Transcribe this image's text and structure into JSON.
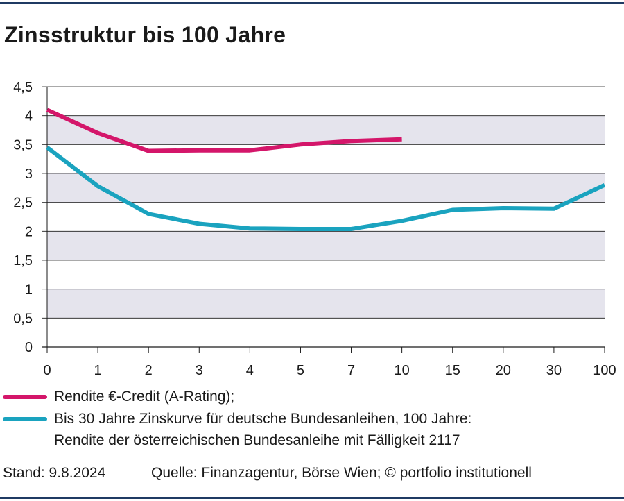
{
  "title": "Zinsstruktur bis 100 Jahre",
  "legend": [
    {
      "label": "Rendite €-Credit (A-Rating);",
      "color": "#d4166a"
    },
    {
      "label": "Bis 30 Jahre Zinskurve für deutsche Bundesanleihen, 100 Jahre:",
      "label_line2": "Rendite der österreichischen Bundesanleihe mit Fälligkeit 2117",
      "color": "#1aa3bf"
    }
  ],
  "footer": {
    "stand": "Stand: 9.8.2024",
    "source": "Quelle: Finanzagentur, Börse Wien; © portfolio institutionell"
  },
  "colors": {
    "band": "#e5e4ed",
    "grid": "#1a1a1a",
    "rule": "#1f3a63"
  },
  "chart_data": {
    "type": "line",
    "title": "Zinsstruktur bis 100 Jahre",
    "xlabel": "",
    "ylabel": "",
    "categories": [
      "0",
      "1",
      "2",
      "3",
      "4",
      "5",
      "7",
      "10",
      "15",
      "20",
      "30",
      "100"
    ],
    "ylim": [
      0,
      4.5
    ],
    "yticks": [
      "0",
      "0,5",
      "1",
      "1,5",
      "2",
      "2,5",
      "3",
      "3,5",
      "4",
      "4,5"
    ],
    "grid": true,
    "legend_position": "bottom",
    "series": [
      {
        "name": "Rendite €-Credit (A-Rating);",
        "color": "#d4166a",
        "values": [
          4.1,
          3.7,
          3.39,
          3.4,
          3.4,
          3.5,
          3.56,
          3.59,
          null,
          null,
          null,
          null
        ]
      },
      {
        "name": "Bis 30 Jahre Zinskurve für deutsche Bundesanleihen, 100 Jahre: Rendite der österreichischen Bundesanleihe mit Fälligkeit 2117",
        "color": "#1aa3bf",
        "values": [
          3.45,
          2.78,
          2.3,
          2.13,
          2.05,
          2.04,
          2.04,
          2.18,
          2.37,
          2.4,
          2.39,
          2.8
        ]
      }
    ]
  }
}
